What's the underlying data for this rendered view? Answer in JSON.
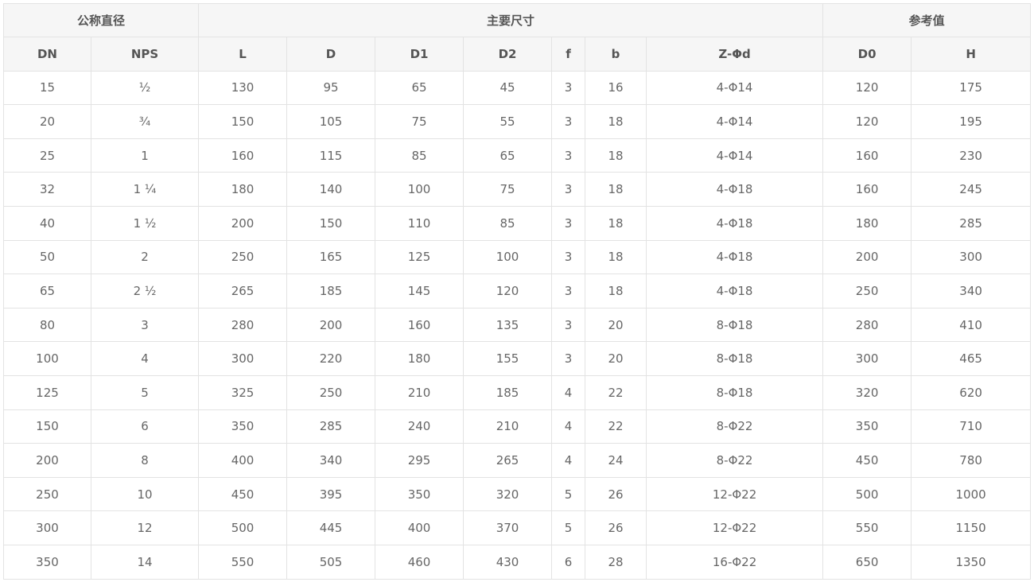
{
  "table": {
    "group_headers": [
      {
        "label": "公称直径",
        "span": 2
      },
      {
        "label": "主要尺寸",
        "span": 7
      },
      {
        "label": "参考值",
        "span": 2
      }
    ],
    "columns": [
      "DN",
      "NPS",
      "L",
      "D",
      "D1",
      "D2",
      "f",
      "b",
      "Z-Φd",
      "D0",
      "H"
    ],
    "rows": [
      [
        "15",
        "½",
        "130",
        "95",
        "65",
        "45",
        "3",
        "16",
        "4-Φ14",
        "120",
        "175"
      ],
      [
        "20",
        "¾",
        "150",
        "105",
        "75",
        "55",
        "3",
        "18",
        "4-Φ14",
        "120",
        "195"
      ],
      [
        "25",
        "1",
        "160",
        "115",
        "85",
        "65",
        "3",
        "18",
        "4-Φ14",
        "160",
        "230"
      ],
      [
        "32",
        "1 ¼",
        "180",
        "140",
        "100",
        "75",
        "3",
        "18",
        "4-Φ18",
        "160",
        "245"
      ],
      [
        "40",
        "1 ½",
        "200",
        "150",
        "110",
        "85",
        "3",
        "18",
        "4-Φ18",
        "180",
        "285"
      ],
      [
        "50",
        "2",
        "250",
        "165",
        "125",
        "100",
        "3",
        "18",
        "4-Φ18",
        "200",
        "300"
      ],
      [
        "65",
        "2 ½",
        "265",
        "185",
        "145",
        "120",
        "3",
        "18",
        "4-Φ18",
        "250",
        "340"
      ],
      [
        "80",
        "3",
        "280",
        "200",
        "160",
        "135",
        "3",
        "20",
        "8-Φ18",
        "280",
        "410"
      ],
      [
        "100",
        "4",
        "300",
        "220",
        "180",
        "155",
        "3",
        "20",
        "8-Φ18",
        "300",
        "465"
      ],
      [
        "125",
        "5",
        "325",
        "250",
        "210",
        "185",
        "4",
        "22",
        "8-Φ18",
        "320",
        "620"
      ],
      [
        "150",
        "6",
        "350",
        "285",
        "240",
        "210",
        "4",
        "22",
        "8-Φ22",
        "350",
        "710"
      ],
      [
        "200",
        "8",
        "400",
        "340",
        "295",
        "265",
        "4",
        "24",
        "8-Φ22",
        "450",
        "780"
      ],
      [
        "250",
        "10",
        "450",
        "395",
        "350",
        "320",
        "5",
        "26",
        "12-Φ22",
        "500",
        "1000"
      ],
      [
        "300",
        "12",
        "500",
        "445",
        "400",
        "370",
        "5",
        "26",
        "12-Φ22",
        "550",
        "1150"
      ],
      [
        "350",
        "14",
        "550",
        "505",
        "460",
        "430",
        "6",
        "28",
        "16-Φ22",
        "650",
        "1350"
      ]
    ]
  }
}
